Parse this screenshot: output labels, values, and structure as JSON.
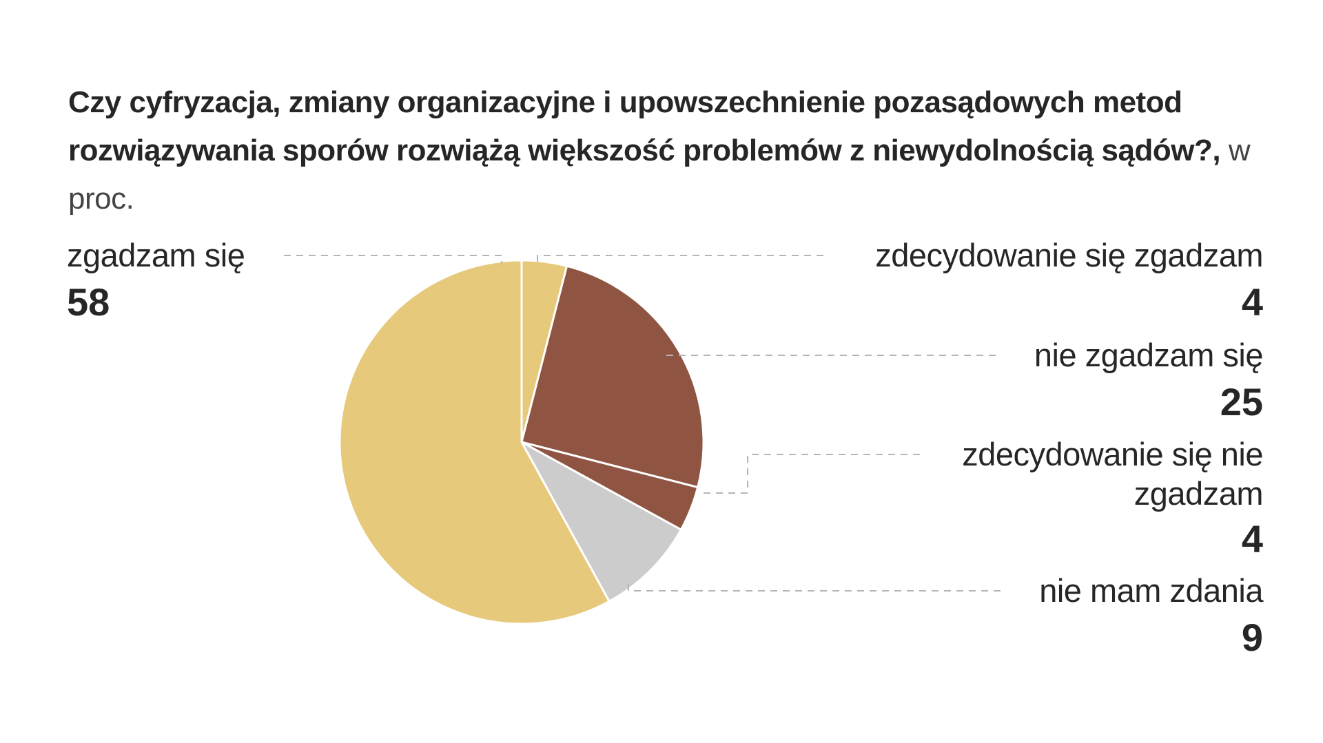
{
  "title": {
    "question": "Czy cyfryzacja, zmiany organizacyjne i upowszechnienie pozasądowych metod rozwiązywania sporów rozwiążą większość problemów z niewydolnością sądów?,",
    "unit": " w proc."
  },
  "chart_data": {
    "type": "pie",
    "title": "Czy cyfryzacja, zmiany organizacyjne i upowszechnienie pozasądowych metod rozwiązywania sporów rozwiążą większość problemów z niewydolnością sądów?",
    "unit": "w proc.",
    "slices": [
      {
        "label": "zdecydowanie się zgadzam",
        "value": 4,
        "color": "#e6c97a"
      },
      {
        "label": "nie zgadzam się",
        "value": 25,
        "color": "#8f5542"
      },
      {
        "label": "zdecydowanie się nie zgadzam",
        "value": 4,
        "color": "#8f5542"
      },
      {
        "label": "nie mam zdania",
        "value": 9,
        "color": "#cccccc"
      },
      {
        "label": "zgadzam się",
        "value": 58,
        "color": "#e6c97a"
      }
    ]
  },
  "labels": {
    "agree": {
      "text": "zgadzam się",
      "value": "58"
    },
    "strongly_agree": {
      "text": "zdecydowanie się zgadzam",
      "value": "4"
    },
    "disagree": {
      "text": "nie zgadzam się",
      "value": "25"
    },
    "strongly_disagree": {
      "text_line1": "zdecydowanie się nie",
      "text_line2": "zgadzam",
      "value": "4"
    },
    "no_opinion": {
      "text": "nie mam zdania",
      "value": "9"
    }
  }
}
